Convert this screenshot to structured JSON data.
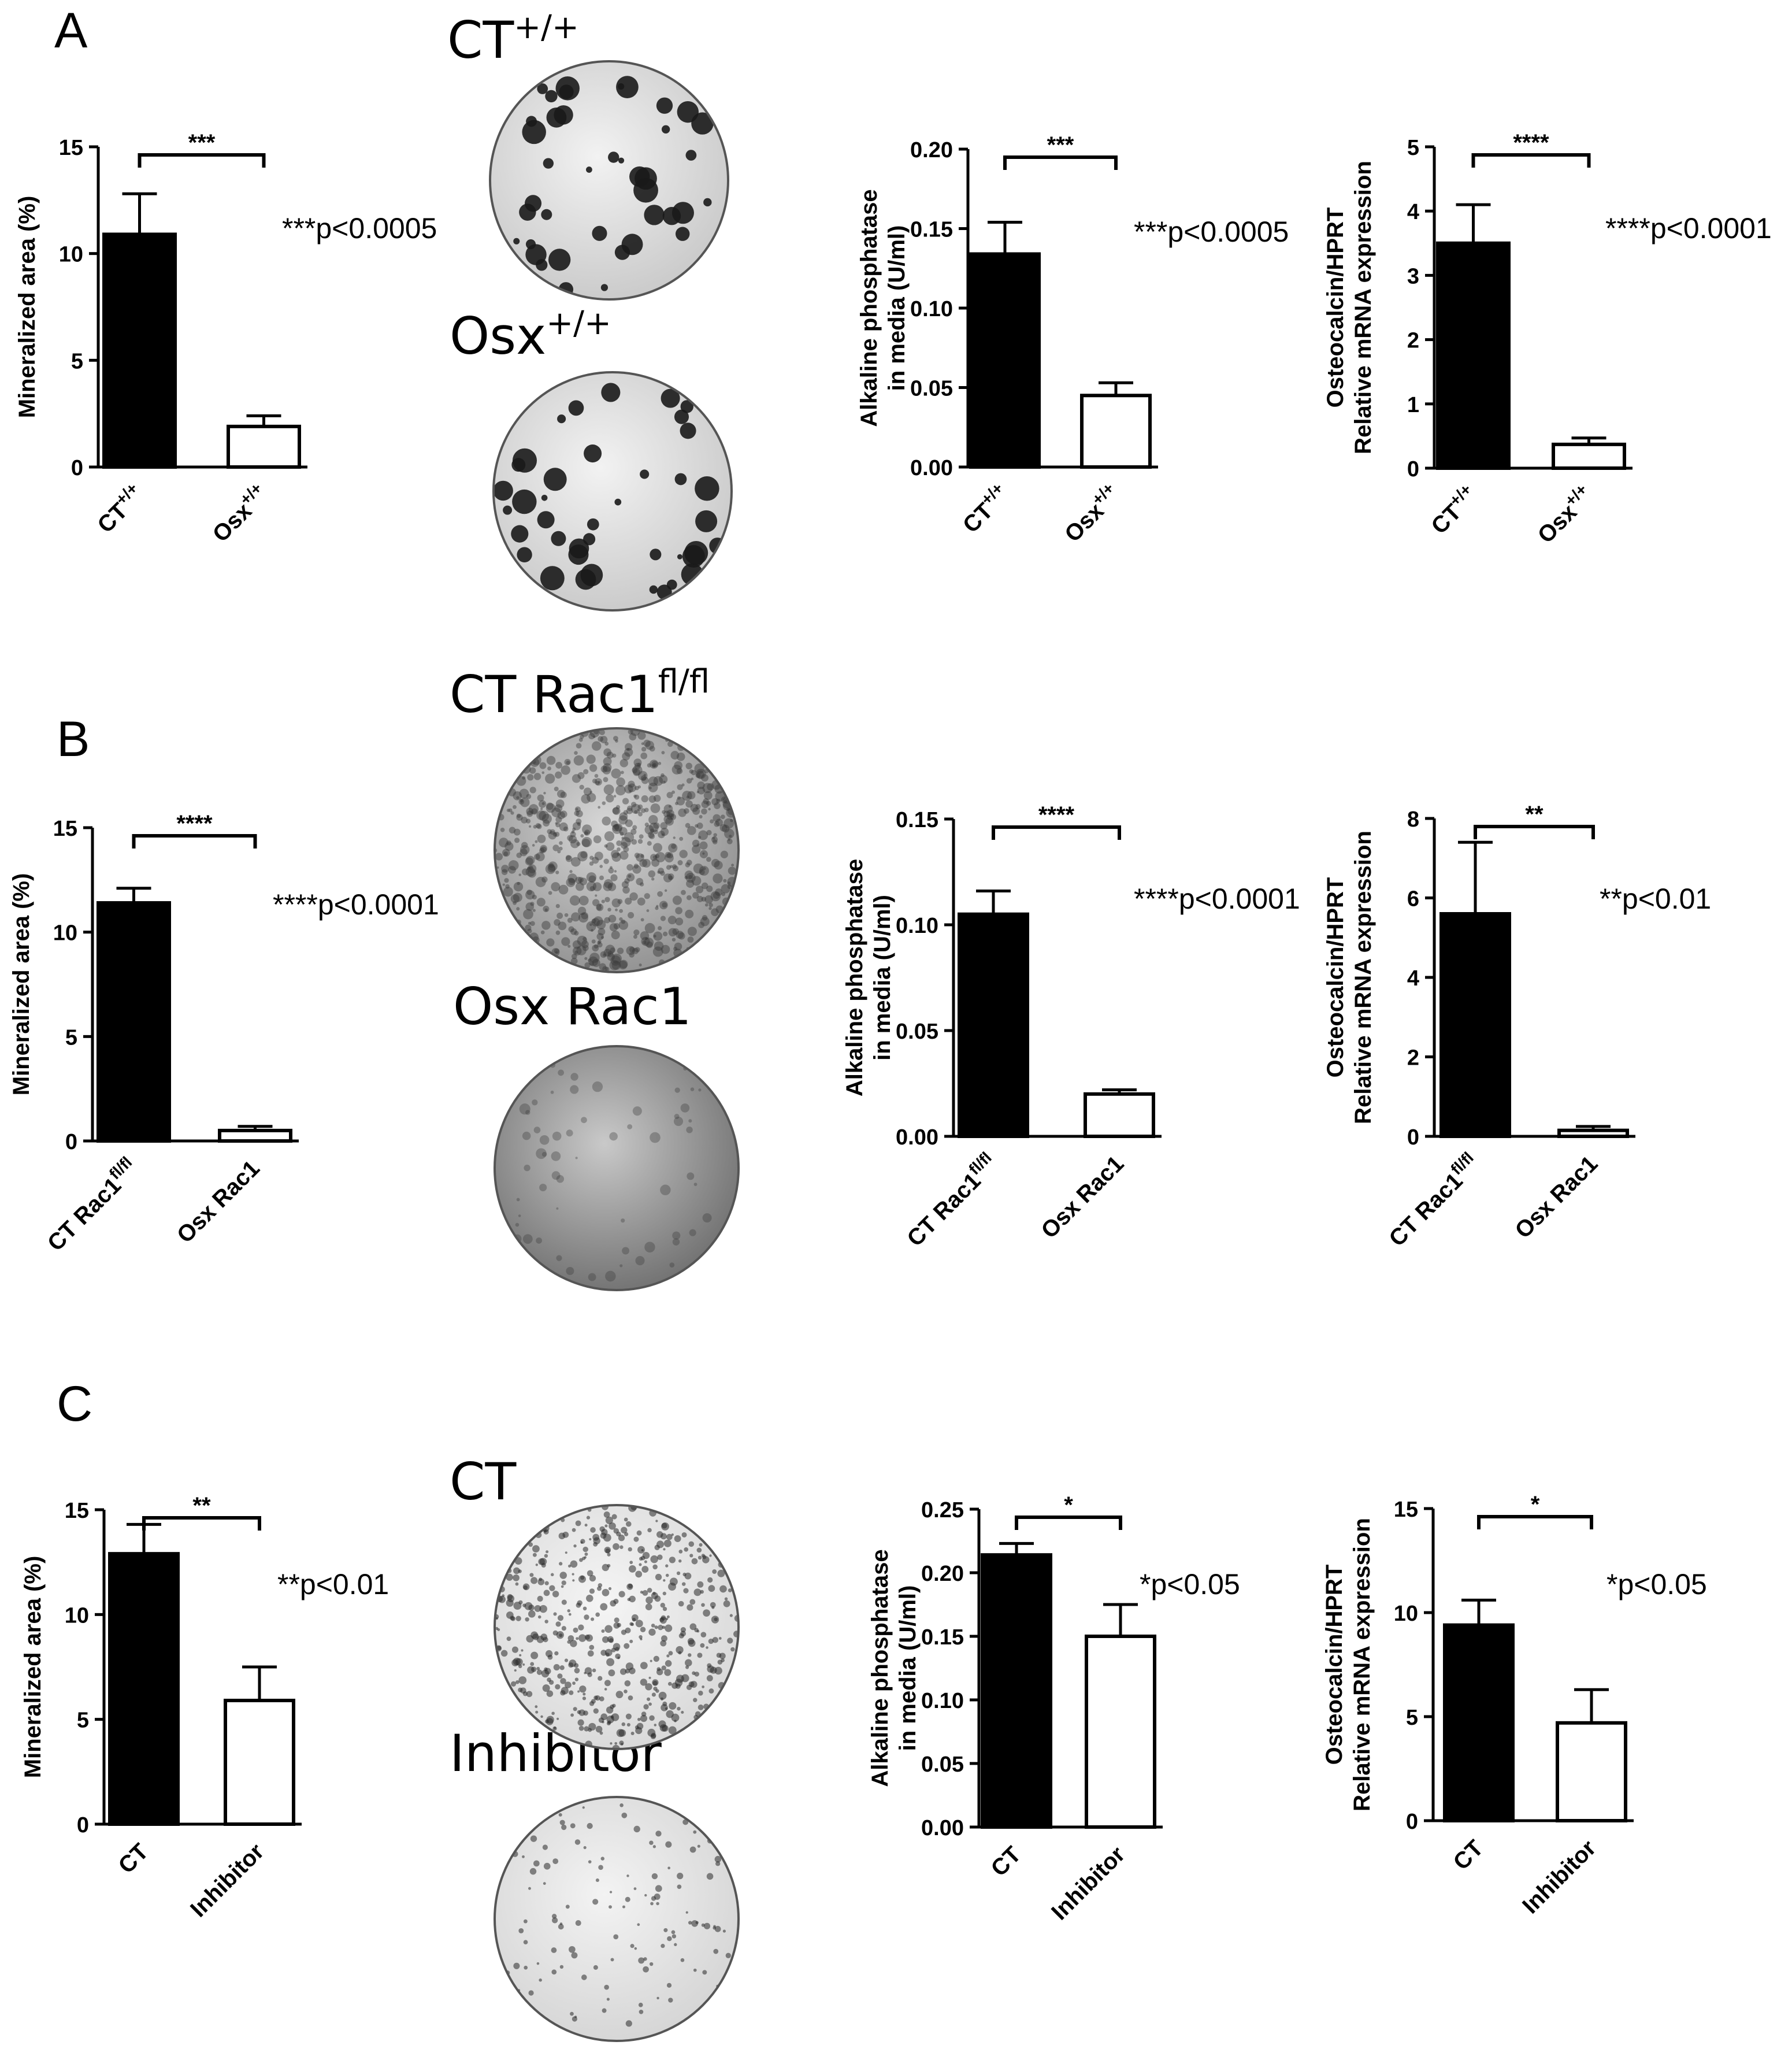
{
  "panels": [
    {
      "letter": "A",
      "dish_labels": [
        {
          "main": "CT",
          "sup": "+/+"
        },
        {
          "main": "Osx",
          "sup": "+/+"
        }
      ],
      "dish_styles": [
        "sparse-large",
        "sparse-large"
      ],
      "p_values": [
        "***p<0.0005",
        "***p<0.0005",
        "****p<0.0001"
      ]
    },
    {
      "letter": "B",
      "dish_labels": [
        {
          "main": "CT Rac1",
          "sup": "fl/fl"
        },
        {
          "main": "Osx Rac1",
          "sup": ""
        }
      ],
      "dish_styles": [
        "dense-grey",
        "faint-grey"
      ],
      "p_values": [
        "****p<0.0001",
        "****p<0.0001",
        "**p<0.01"
      ]
    },
    {
      "letter": "C",
      "dish_labels": [
        {
          "main": "CT",
          "sup": ""
        },
        {
          "main": "Inhibitor",
          "sup": ""
        }
      ],
      "dish_styles": [
        "dense-dots",
        "sparse-dots"
      ],
      "p_values": [
        "**p<0.01",
        "*p<0.05",
        "*p<0.05"
      ]
    }
  ],
  "chart_data": [
    {
      "id": "A1",
      "type": "bar",
      "ylabel": "Mineralized area (%)",
      "categories": [
        {
          "base": "CT",
          "sup": "+/+"
        },
        {
          "base": "Osx",
          "sup": "+/+"
        }
      ],
      "values": [
        10.9,
        1.9
      ],
      "errors": [
        1.9,
        0.5
      ],
      "ylim": [
        0,
        15
      ],
      "yticks": [
        "0",
        "5",
        "10",
        "15"
      ],
      "significance": "***",
      "fills": [
        "#000000",
        "#ffffff"
      ]
    },
    {
      "id": "A2",
      "type": "bar",
      "ylabel": [
        "Alkaline phosphatase",
        "in media (U/ml)"
      ],
      "categories": [
        {
          "base": "CT",
          "sup": "+/+"
        },
        {
          "base": "Osx",
          "sup": "+/+"
        }
      ],
      "values": [
        0.134,
        0.045
      ],
      "errors": [
        0.02,
        0.008
      ],
      "ylim": [
        0,
        0.2
      ],
      "yticks": [
        "0.00",
        "0.05",
        "0.10",
        "0.15",
        "0.20"
      ],
      "significance": "***",
      "fills": [
        "#000000",
        "#ffffff"
      ]
    },
    {
      "id": "A3",
      "type": "bar",
      "ylabel": [
        "Osteocalcin/HPRT",
        "Relative mRNA expression"
      ],
      "categories": [
        {
          "base": "CT",
          "sup": "+/+"
        },
        {
          "base": "Osx",
          "sup": "+/+"
        }
      ],
      "values": [
        3.5,
        0.37
      ],
      "errors": [
        0.6,
        0.1
      ],
      "ylim": [
        0,
        5
      ],
      "yticks": [
        "0",
        "1",
        "2",
        "3",
        "4",
        "5"
      ],
      "significance": "****",
      "fills": [
        "#000000",
        "#ffffff"
      ]
    },
    {
      "id": "B1",
      "type": "bar",
      "ylabel": "Mineralized area (%)",
      "categories": [
        {
          "base": "CT Rac1",
          "sup": "fl/fl"
        },
        {
          "base": "Osx Rac1",
          "sup": ""
        }
      ],
      "values": [
        11.4,
        0.5
      ],
      "errors": [
        0.7,
        0.2
      ],
      "ylim": [
        0,
        15
      ],
      "yticks": [
        "0",
        "5",
        "10",
        "15"
      ],
      "significance": "****",
      "fills": [
        "#000000",
        "#ffffff"
      ]
    },
    {
      "id": "B2",
      "type": "bar",
      "ylabel": [
        "Alkaline phosphatase",
        "in media (U/ml)"
      ],
      "categories": [
        {
          "base": "CT Rac1",
          "sup": "fl/fl"
        },
        {
          "base": "Osx Rac1",
          "sup": ""
        }
      ],
      "values": [
        0.105,
        0.02
      ],
      "errors": [
        0.011,
        0.002
      ],
      "ylim": [
        0,
        0.15
      ],
      "yticks": [
        "0.00",
        "0.05",
        "0.10",
        "0.15"
      ],
      "significance": "****",
      "fills": [
        "#000000",
        "#ffffff"
      ]
    },
    {
      "id": "B3",
      "type": "bar",
      "ylabel": [
        "Osteocalcin/HPRT",
        "Relative mRNA expression"
      ],
      "categories": [
        {
          "base": "CT Rac1",
          "sup": "fl/fl"
        },
        {
          "base": "Osx Rac1",
          "sup": ""
        }
      ],
      "values": [
        5.6,
        0.15
      ],
      "errors": [
        1.8,
        0.1
      ],
      "ylim": [
        0,
        8
      ],
      "yticks": [
        "0",
        "2",
        "4",
        "6",
        "8"
      ],
      "significance": "**",
      "fills": [
        "#000000",
        "#ffffff"
      ]
    },
    {
      "id": "C1",
      "type": "bar",
      "ylabel": "Mineralized area (%)",
      "categories": [
        {
          "base": "CT",
          "sup": ""
        },
        {
          "base": "Inhibitor",
          "sup": ""
        }
      ],
      "values": [
        12.9,
        5.9
      ],
      "errors": [
        1.4,
        1.6
      ],
      "ylim": [
        0,
        15
      ],
      "yticks": [
        "0",
        "5",
        "10",
        "15"
      ],
      "significance": "**",
      "fills": [
        "#000000",
        "#ffffff"
      ]
    },
    {
      "id": "C2",
      "type": "bar",
      "ylabel": [
        "Alkaline phosphatase",
        "in media (U/ml)"
      ],
      "categories": [
        {
          "base": "CT",
          "sup": ""
        },
        {
          "base": "Inhibitor",
          "sup": ""
        }
      ],
      "values": [
        0.214,
        0.15
      ],
      "errors": [
        0.009,
        0.025
      ],
      "ylim": [
        0,
        0.25
      ],
      "yticks": [
        "0.00",
        "0.05",
        "0.10",
        "0.15",
        "0.20",
        "0.25"
      ],
      "significance": "*",
      "fills": [
        "#000000",
        "#ffffff"
      ]
    },
    {
      "id": "C3",
      "type": "bar",
      "ylabel": [
        "Osteocalcin/HPRT",
        "Relative mRNA expression"
      ],
      "categories": [
        {
          "base": "CT",
          "sup": ""
        },
        {
          "base": "Inhibitor",
          "sup": ""
        }
      ],
      "values": [
        9.4,
        4.7
      ],
      "errors": [
        1.2,
        1.6
      ],
      "ylim": [
        0,
        15
      ],
      "yticks": [
        "0",
        "5",
        "10",
        "15"
      ],
      "significance": "*",
      "fills": [
        "#000000",
        "#ffffff"
      ]
    }
  ]
}
